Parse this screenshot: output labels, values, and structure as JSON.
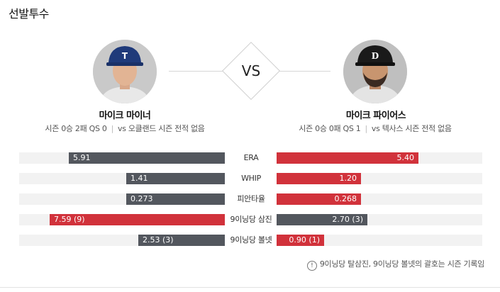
{
  "section": {
    "title": "선발투수"
  },
  "vs_label": "VS",
  "colors": {
    "away": "#53575e",
    "home": "#d1323b",
    "track": "#f2f2f2"
  },
  "away_pitcher": {
    "name": "마이크 마이너",
    "record": "시즌 0승 2패 QS 0",
    "matchup": "vs 오클랜드 시즌 전적 없음",
    "cap_logo": "T"
  },
  "home_pitcher": {
    "name": "마이크 파이어스",
    "record": "시즌 0승 0패 QS 1",
    "matchup": "vs 텍사스 시즌 전적 없음",
    "cap_logo": "D"
  },
  "comparison": [
    {
      "label": "ERA",
      "away": "5.91",
      "home": "5.40",
      "away_ratio": 0.76,
      "home_ratio": 0.69,
      "leader": "home"
    },
    {
      "label": "WHIP",
      "away": "1.41",
      "home": "1.20",
      "away_ratio": 0.48,
      "home_ratio": 0.41,
      "leader": "home"
    },
    {
      "label": "피안타율",
      "away": "0.273",
      "home": "0.268",
      "away_ratio": 0.48,
      "home_ratio": 0.41,
      "leader": "home"
    },
    {
      "label": "9이닝당 삼진",
      "away": "7.59 (9)",
      "home": "2.70 (3)",
      "away_ratio": 0.85,
      "home_ratio": 0.44,
      "leader": "away"
    },
    {
      "label": "9이닝당 볼넷",
      "away": "2.53 (3)",
      "home": "0.90 (1)",
      "away_ratio": 0.42,
      "home_ratio": 0.23,
      "leader": "home"
    }
  ],
  "footnote": "9이닝당 탈삼진, 9이닝당 볼넷의 괄호는 시즌 기록임"
}
